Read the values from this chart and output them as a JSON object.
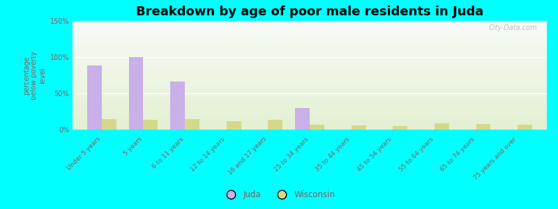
{
  "title": "Breakdown by age of poor male residents in Juda",
  "ylabel": "percentage\nbelow poverty\nlevel",
  "categories": [
    "Under 5 years",
    "5 years",
    "6 to 11 years",
    "12 to 14 years",
    "16 and 17 years",
    "25 to 34 years",
    "35 to 44 years",
    "45 to 54 years",
    "55 to 64 years",
    "65 to 74 years",
    "75 years and over"
  ],
  "juda_values": [
    88,
    100,
    66,
    0,
    0,
    30,
    0,
    0,
    0,
    0,
    0
  ],
  "wisconsin_values": [
    14,
    13,
    14,
    12,
    13,
    7,
    6,
    5,
    9,
    8,
    7
  ],
  "juda_color": "#c9b0e8",
  "wisconsin_color": "#d4d98a",
  "background_color": "#00ffff",
  "title_fontsize": 13,
  "ylim": [
    0,
    150
  ],
  "yticks": [
    0,
    50,
    100,
    150
  ],
  "watermark": "City-Data.com",
  "bar_width": 0.35,
  "label_color": "#806060",
  "tick_color": "#806060"
}
